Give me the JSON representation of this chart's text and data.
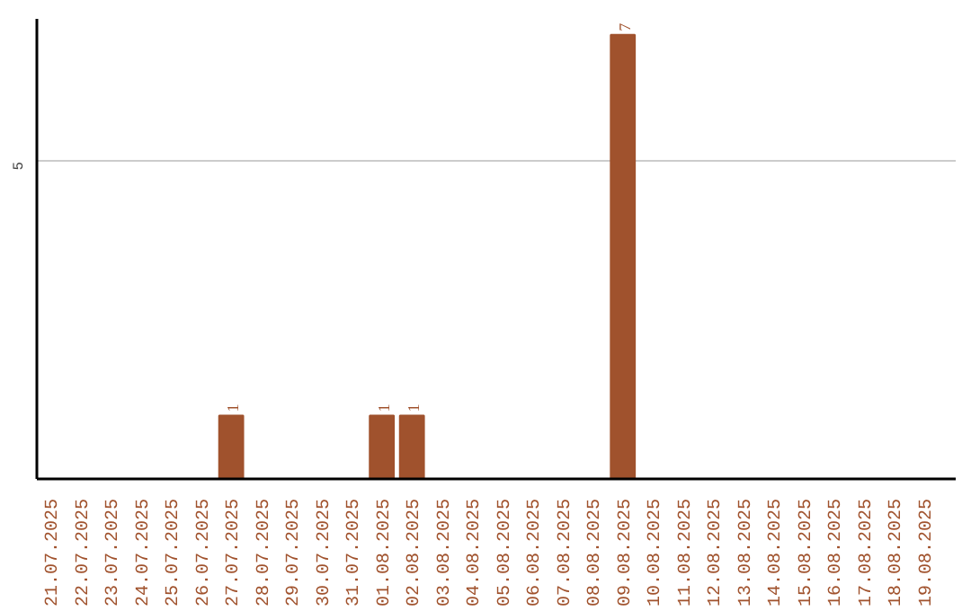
{
  "chart_data": {
    "type": "bar",
    "categories": [
      "21.07.2025",
      "22.07.2025",
      "23.07.2025",
      "24.07.2025",
      "25.07.2025",
      "26.07.2025",
      "27.07.2025",
      "28.07.2025",
      "29.07.2025",
      "30.07.2025",
      "31.07.2025",
      "01.08.2025",
      "02.08.2025",
      "03.08.2025",
      "04.08.2025",
      "05.08.2025",
      "06.08.2025",
      "07.08.2025",
      "08.08.2025",
      "09.08.2025",
      "10.08.2025",
      "11.08.2025",
      "12.08.2025",
      "13.08.2025",
      "14.08.2025",
      "15.08.2025",
      "16.08.2025",
      "17.08.2025",
      "18.08.2025",
      "19.08.2025"
    ],
    "values": [
      0,
      0,
      0,
      0,
      0,
      0,
      1,
      0,
      0,
      0,
      0,
      1,
      1,
      0,
      0,
      0,
      0,
      0,
      0,
      7,
      0,
      0,
      0,
      0,
      0,
      0,
      0,
      0,
      0,
      0
    ],
    "value_labels": [
      null,
      null,
      null,
      null,
      null,
      null,
      "1",
      null,
      null,
      null,
      null,
      "1",
      "1",
      null,
      null,
      null,
      null,
      null,
      null,
      "7",
      null,
      null,
      null,
      null,
      null,
      null,
      null,
      null,
      null,
      null
    ],
    "color": "#a0522d",
    "ylim": [
      0,
      7.25
    ],
    "yticks": [
      5
    ],
    "grid": "y"
  }
}
